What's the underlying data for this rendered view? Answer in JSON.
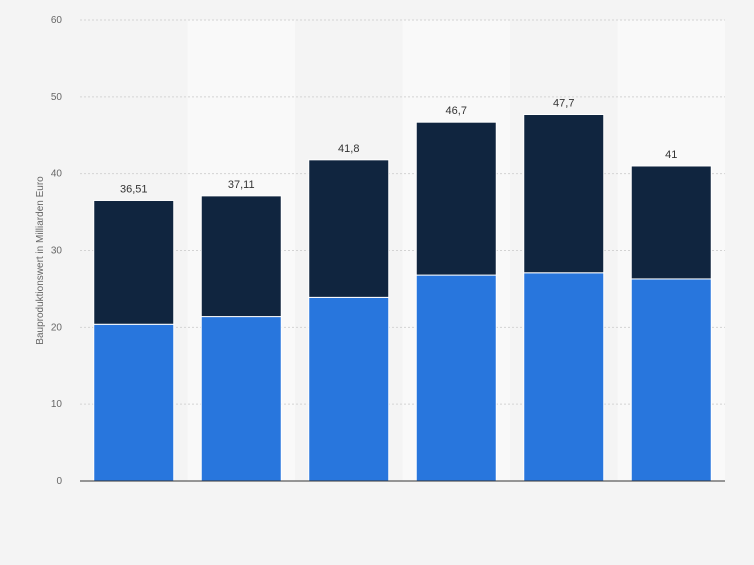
{
  "chart_data": {
    "type": "bar",
    "stacked": true,
    "title": "",
    "xlabel": "",
    "ylabel": "Bauproduktionswert in Milliarden Euro",
    "ylim": [
      0,
      60
    ],
    "yticks": [
      0,
      10,
      20,
      30,
      40,
      50,
      60
    ],
    "grid": true,
    "categories": [
      "",
      "",
      "",
      "",
      "",
      ""
    ],
    "totals": [
      "36,51",
      "37,11",
      "41,8",
      "46,7",
      "47,7",
      "41"
    ],
    "series": [
      {
        "values": [
          20.4,
          21.4,
          23.9,
          26.8,
          27.1,
          26.3
        ],
        "color": "#2876dd"
      },
      {
        "values": [
          16.11,
          15.71,
          17.9,
          19.9,
          20.6,
          14.7
        ],
        "color": "#10253f"
      }
    ]
  }
}
